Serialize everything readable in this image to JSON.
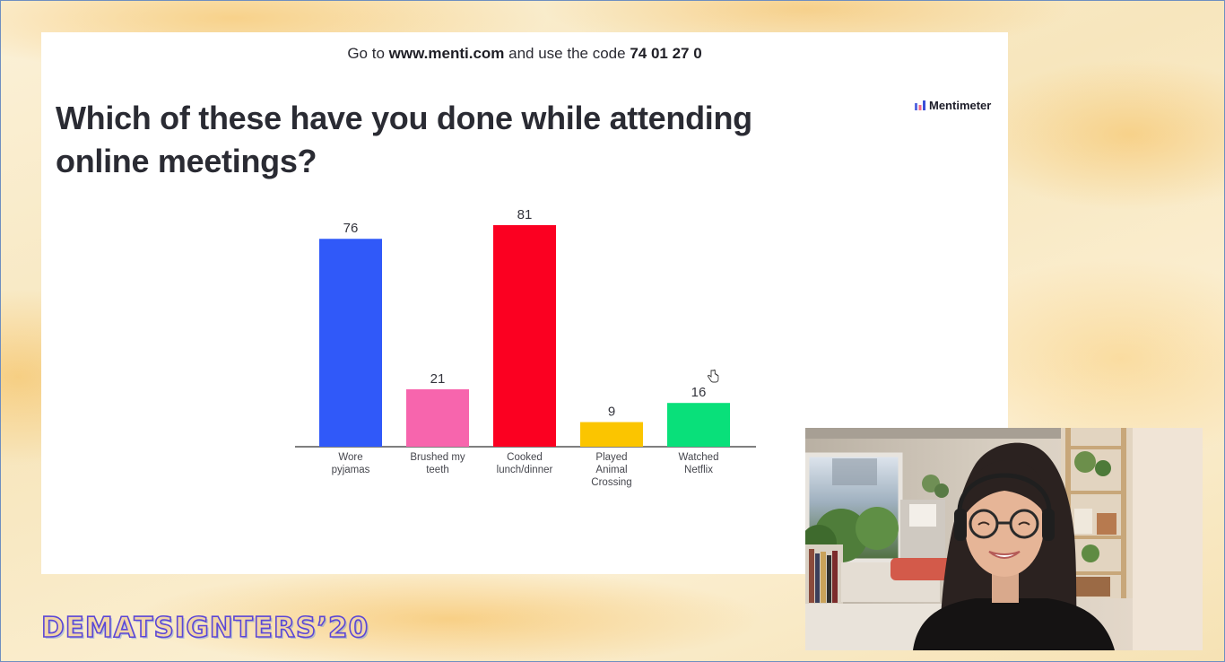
{
  "slide": {
    "join_prefix": "Go to ",
    "join_url": "www.menti.com",
    "join_middle": " and use the code ",
    "join_code": "74 01 27 0",
    "question_line1": "Which of these have you done while attending",
    "question_line2": "online meetings?",
    "brand": "Mentimeter"
  },
  "chart_data": {
    "type": "bar",
    "categories": [
      [
        "Wore",
        "pyjamas"
      ],
      [
        "Brushed my",
        "teeth"
      ],
      [
        "Cooked",
        "lunch/dinner"
      ],
      [
        "Played",
        "Animal",
        "Crossing"
      ],
      [
        "Watched",
        "Netflix"
      ]
    ],
    "values": [
      76,
      21,
      81,
      9,
      16
    ],
    "colors": [
      "#3059f9",
      "#f765ad",
      "#fb0021",
      "#fbc500",
      "#09e07a"
    ],
    "ylim": [
      0,
      81
    ],
    "grid": false,
    "legend": "none"
  },
  "event": {
    "logo_text": "DEMATSIGNTERS’20"
  },
  "video": {
    "icon": "webcam-feed-icon"
  },
  "colors": {
    "slide_bg": "#ffffff",
    "axis": "#555555",
    "text": "#2a2b33"
  }
}
